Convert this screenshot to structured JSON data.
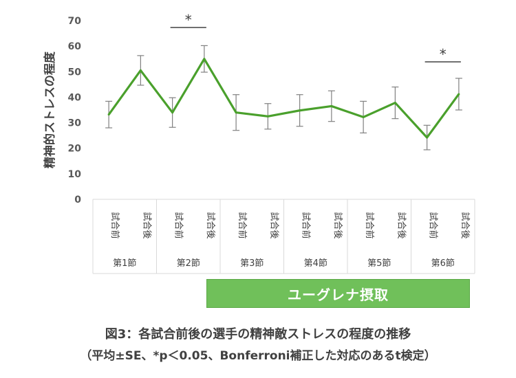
{
  "chart_data": {
    "type": "line",
    "ylabel": "精神的ストレスの程度",
    "ylim": [
      0,
      70
    ],
    "yticks": [
      0,
      10,
      20,
      30,
      40,
      50,
      60,
      70
    ],
    "grid": false,
    "categories": [
      "試合前",
      "試合後",
      "試合前",
      "試合後",
      "試合前",
      "試合後",
      "試合前",
      "試合後",
      "試合前",
      "試合後",
      "試合前",
      "試合後"
    ],
    "groups": [
      "第1節",
      "第2節",
      "第3節",
      "第4節",
      "第5節",
      "第6節"
    ],
    "series": [
      {
        "values": [
          33.2,
          50.5,
          34.0,
          55.0,
          34.0,
          32.5,
          34.8,
          36.5,
          32.2,
          37.8,
          24.2,
          41.2
        ],
        "errors": [
          5.2,
          5.8,
          5.8,
          5.2,
          7.0,
          5.0,
          6.2,
          6.0,
          6.2,
          6.2,
          4.8,
          6.2
        ],
        "color": "#4aa02c"
      }
    ],
    "significance": [
      {
        "from": 2,
        "to": 3,
        "label": "*"
      },
      {
        "from": 10,
        "to": 11,
        "label": "*"
      }
    ],
    "intervention_label": "ユーグレナ摂取"
  },
  "caption": {
    "line1": "図3：各試合前後の選手の精神敵ストレスの程度の推移",
    "line2": "（平均±SE、*p＜0.05、Bonferroni補正した対応のあるt検定）"
  }
}
